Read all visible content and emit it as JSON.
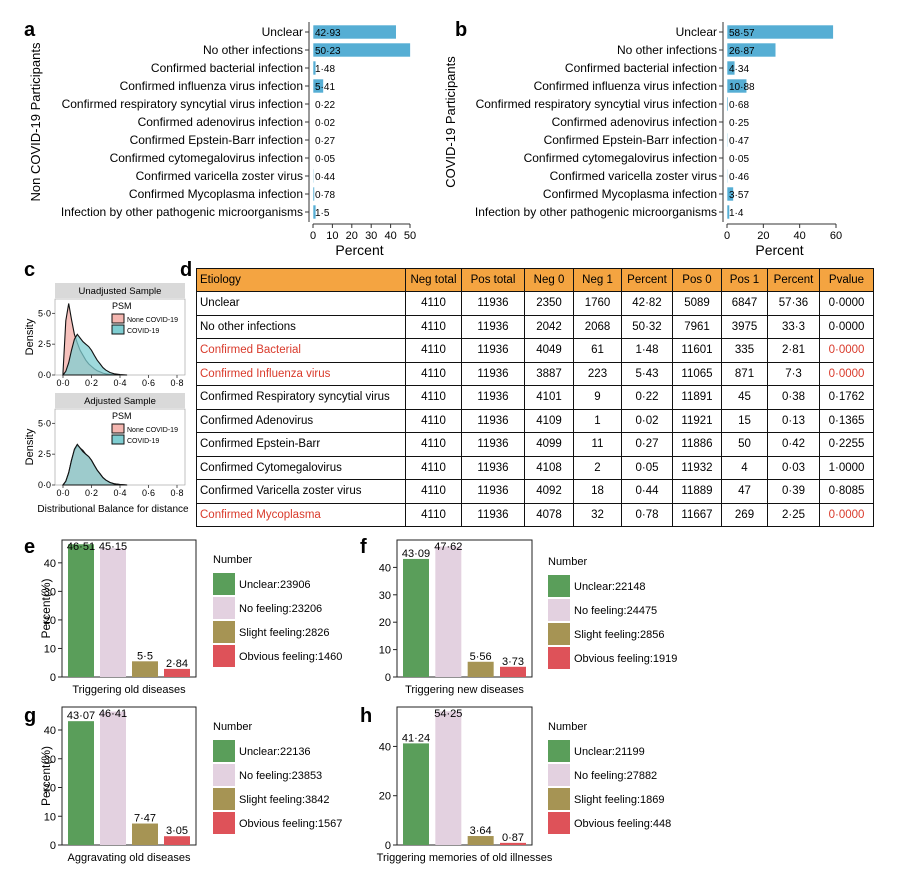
{
  "panel_labels": {
    "a": "a",
    "b": "b",
    "c": "c",
    "d": "d",
    "e": "e",
    "f": "f",
    "g": "g",
    "h": "h"
  },
  "chart_data": [
    {
      "panel": "a",
      "type": "bar",
      "orientation": "horizontal",
      "ylabel": "Non COVID-19 Participants",
      "xlabel": "Percent",
      "xlim": [
        0,
        50
      ],
      "xticks": [
        0,
        10,
        20,
        30,
        40,
        50
      ],
      "color": "#56aed4",
      "categories": [
        "Unclear",
        "No other infections",
        "Confirmed bacterial infection",
        "Confirmed influenza virus infection",
        "Confirmed respiratory syncytial virus infection",
        "Confirmed adenovirus infection",
        "Confirmed Epstein-Barr infection",
        "Confirmed cytomegalovirus infection",
        "Confirmed varicella zoster virus",
        "Confirmed Mycoplasma infection",
        "Infection by other pathogenic microorganisms"
      ],
      "values": [
        42.93,
        50.23,
        1.48,
        5.41,
        0.22,
        0.02,
        0.27,
        0.05,
        0.44,
        0.78,
        1.5
      ],
      "value_labels": [
        "42·93",
        "50·23",
        "1·48",
        "5·41",
        "0·22",
        "0·02",
        "0·27",
        "0·05",
        "0·44",
        "0·78",
        "1·5"
      ]
    },
    {
      "panel": "b",
      "type": "bar",
      "orientation": "horizontal",
      "ylabel": "COVID-19 Participants",
      "xlabel": "Percent",
      "xlim": [
        0,
        60
      ],
      "xticks": [
        0,
        20,
        40,
        60
      ],
      "color": "#56aed4",
      "categories": [
        "Unclear",
        "No other infections",
        "Confirmed bacterial infection",
        "Confirmed influenza virus infection",
        "Confirmed respiratory syncytial virus infection",
        "Confirmed adenovirus infection",
        "Confirmed Epstein-Barr infection",
        "Confirmed cytomegalovirus infection",
        "Confirmed varicella zoster virus",
        "Confirmed Mycoplasma infection",
        "Infection by other pathogenic microorganisms"
      ],
      "values": [
        58.57,
        26.87,
        4.34,
        10.88,
        0.68,
        0.25,
        0.47,
        0.05,
        0.46,
        3.57,
        1.4
      ],
      "value_labels": [
        "58·57",
        "26·87",
        "4·34",
        "10·88",
        "0·68",
        "0·25",
        "0·47",
        "0·05",
        "0·46",
        "3·57",
        "1·4"
      ]
    },
    {
      "panel": "c",
      "type": "area",
      "facets": [
        {
          "title": "Unadjusted Sample",
          "series": [
            {
              "name": "None COVID-19",
              "color": "#f4b6b0",
              "x": [
                0,
                0.02,
                0.04,
                0.06,
                0.08,
                0.1,
                0.12,
                0.14,
                0.16,
                0.18,
                0.2,
                0.22,
                0.24,
                0.26,
                0.28,
                0.3,
                0.33,
                0.36,
                0.4
              ],
              "y": [
                0.2,
                4.4,
                5.8,
                4.5,
                3.3,
                2.6,
                2.0,
                1.6,
                1.2,
                0.9,
                0.7,
                0.5,
                0.35,
                0.25,
                0.15,
                0.1,
                0.05,
                0.02,
                0
              ]
            },
            {
              "name": "COVID-19",
              "color": "#7fcdd1",
              "x": [
                0,
                0.02,
                0.04,
                0.06,
                0.08,
                0.1,
                0.12,
                0.14,
                0.16,
                0.18,
                0.2,
                0.22,
                0.24,
                0.26,
                0.28,
                0.3,
                0.33,
                0.36,
                0.4,
                0.45
              ],
              "y": [
                0,
                0.3,
                1.0,
                2.0,
                2.9,
                3.3,
                3.0,
                2.7,
                2.5,
                2.3,
                2.0,
                1.6,
                1.2,
                0.9,
                0.6,
                0.4,
                0.2,
                0.1,
                0.03,
                0
              ]
            }
          ]
        },
        {
          "title": "Adjusted Sample",
          "series": [
            {
              "name": "None COVID-19",
              "color": "#f4b6b0",
              "x": [
                0,
                0.02,
                0.04,
                0.06,
                0.08,
                0.1,
                0.12,
                0.14,
                0.16,
                0.18,
                0.2,
                0.22,
                0.24,
                0.26,
                0.28,
                0.3,
                0.33,
                0.36,
                0.4,
                0.45
              ],
              "y": [
                0,
                0.3,
                1.0,
                2.0,
                2.8,
                3.2,
                3.0,
                2.8,
                2.5,
                2.3,
                2.0,
                1.6,
                1.2,
                0.9,
                0.6,
                0.4,
                0.2,
                0.1,
                0.03,
                0
              ]
            },
            {
              "name": "COVID-19",
              "color": "#7fcdd1",
              "x": [
                0,
                0.02,
                0.04,
                0.06,
                0.08,
                0.1,
                0.12,
                0.14,
                0.16,
                0.18,
                0.2,
                0.22,
                0.24,
                0.26,
                0.28,
                0.3,
                0.33,
                0.36,
                0.4,
                0.45
              ],
              "y": [
                0,
                0.3,
                1.0,
                2.0,
                2.9,
                3.3,
                3.0,
                2.7,
                2.5,
                2.3,
                2.0,
                1.6,
                1.2,
                0.9,
                0.6,
                0.4,
                0.2,
                0.1,
                0.03,
                0
              ]
            }
          ]
        }
      ],
      "legend_title": "PSM",
      "ylabel": "Density",
      "xlabel": "Distributional Balance for distance",
      "xlim": [
        0,
        0.8
      ],
      "ylim": [
        0,
        6
      ],
      "xtick_labels": [
        "0·0",
        "0·2",
        "0·4",
        "0·6",
        "0·8"
      ],
      "ytick_labels": [
        "0·0",
        "2·5",
        "5·0"
      ],
      "ytick_values": [
        0,
        2.5,
        5.0
      ]
    },
    {
      "panel": "d",
      "type": "table",
      "columns": [
        "Etiology",
        "Neg total",
        "Pos total",
        "Neg 0",
        "Neg 1",
        "Percent",
        "Pos 0",
        "Pos 1",
        "Percent",
        "Pvalue"
      ],
      "rows": [
        {
          "cells": [
            "Unclear",
            "4110",
            "11936",
            "2350",
            "1760",
            "42·82",
            "5089",
            "6847",
            "57·36",
            "0·0000"
          ],
          "highlight": false
        },
        {
          "cells": [
            "No other infections",
            "4110",
            "11936",
            "2042",
            "2068",
            "50·32",
            "7961",
            "3975",
            "33·3",
            "0·0000"
          ],
          "highlight": false
        },
        {
          "cells": [
            "Confirmed Bacterial",
            "4110",
            "11936",
            "4049",
            "61",
            "1·48",
            "11601",
            "335",
            "2·81",
            "0·0000"
          ],
          "highlight": true
        },
        {
          "cells": [
            "Confirmed Influenza virus",
            "4110",
            "11936",
            "3887",
            "223",
            "5·43",
            "11065",
            "871",
            "7·3",
            "0·0000"
          ],
          "highlight": true
        },
        {
          "cells": [
            "Confirmed Respiratory syncytial virus",
            "4110",
            "11936",
            "4101",
            "9",
            "0·22",
            "11891",
            "45",
            "0·38",
            "0·1762"
          ],
          "highlight": false
        },
        {
          "cells": [
            "Confirmed Adenovirus",
            "4110",
            "11936",
            "4109",
            "1",
            "0·02",
            "11921",
            "15",
            "0·13",
            "0·1365"
          ],
          "highlight": false
        },
        {
          "cells": [
            "Confirmed Epstein-Barr",
            "4110",
            "11936",
            "4099",
            "11",
            "0·27",
            "11886",
            "50",
            "0·42",
            "0·2255"
          ],
          "highlight": false
        },
        {
          "cells": [
            "Confirmed Cytomegalovirus",
            "4110",
            "11936",
            "4108",
            "2",
            "0·05",
            "11932",
            "4",
            "0·03",
            "1·0000"
          ],
          "highlight": false
        },
        {
          "cells": [
            "Confirmed Varicella zoster virus",
            "4110",
            "11936",
            "4092",
            "18",
            "0·44",
            "11889",
            "47",
            "0·39",
            "0·8085"
          ],
          "highlight": false
        },
        {
          "cells": [
            "Confirmed Mycoplasma",
            "4110",
            "11936",
            "4078",
            "32",
            "0·78",
            "11667",
            "269",
            "2·25",
            "0·0000"
          ],
          "highlight": true
        }
      ],
      "highlight_color": "#d93a2b"
    },
    {
      "panel": "e",
      "type": "bar",
      "xlabel": "Triggering old diseases",
      "ylabel": "Percent(%)",
      "ylim": [
        0,
        48
      ],
      "yticks": [
        0,
        10,
        20,
        30,
        40
      ],
      "legend_title": "Number",
      "categories": [
        "Unclear",
        "No feeling",
        "Slight feeling",
        "Obvious feeling"
      ],
      "values": [
        46.51,
        45.15,
        5.5,
        2.84
      ],
      "value_labels": [
        "46·51",
        "45·15",
        "5·5",
        "2·84"
      ],
      "legend_labels": [
        "Unclear:23906",
        "No feeling:23206",
        "Slight feeling:2826",
        "Obvious feeling:1460"
      ],
      "colors": [
        "#5a9e5a",
        "#e3d1e0",
        "#a69454",
        "#de5259"
      ]
    },
    {
      "panel": "f",
      "type": "bar",
      "xlabel": "Triggering new diseases",
      "ylabel": "",
      "ylim": [
        0,
        50
      ],
      "yticks": [
        0,
        10,
        20,
        30,
        40
      ],
      "legend_title": "Number",
      "categories": [
        "Unclear",
        "No feeling",
        "Slight feeling",
        "Obvious feeling"
      ],
      "values": [
        43.09,
        47.62,
        5.56,
        3.73
      ],
      "value_labels": [
        "43·09",
        "47·62",
        "5·56",
        "3·73"
      ],
      "legend_labels": [
        "Unclear:22148",
        "No feeling:24475",
        "Slight feeling:2856",
        "Obvious feeling:1919"
      ],
      "colors": [
        "#5a9e5a",
        "#e3d1e0",
        "#a69454",
        "#de5259"
      ]
    },
    {
      "panel": "g",
      "type": "bar",
      "xlabel": "Aggravating old diseases",
      "ylabel": "Percent(%)",
      "ylim": [
        0,
        48
      ],
      "yticks": [
        0,
        10,
        20,
        30,
        40
      ],
      "legend_title": "Number",
      "categories": [
        "Unclear",
        "No feeling",
        "Slight feeling",
        "Obvious feeling"
      ],
      "values": [
        43.07,
        46.41,
        7.47,
        3.05
      ],
      "value_labels": [
        "43·07",
        "46·41",
        "7·47",
        "3·05"
      ],
      "legend_labels": [
        "Unclear:22136",
        "No feeling:23853",
        "Slight feeling:3842",
        "Obvious feeling:1567"
      ],
      "colors": [
        "#5a9e5a",
        "#e3d1e0",
        "#a69454",
        "#de5259"
      ]
    },
    {
      "panel": "h",
      "type": "bar",
      "xlabel": "Triggering memories of old illnesses",
      "ylabel": "",
      "ylim": [
        0,
        56
      ],
      "yticks": [
        0,
        20,
        40
      ],
      "legend_title": "Number",
      "categories": [
        "Unclear",
        "No feeling",
        "Slight feeling",
        "Obvious feeling"
      ],
      "values": [
        41.24,
        54.25,
        3.64,
        0.87
      ],
      "value_labels": [
        "41·24",
        "54·25",
        "3·64",
        "0·87"
      ],
      "legend_labels": [
        "Unclear:21199",
        "No feeling:27882",
        "Slight feeling:1869",
        "Obvious feeling:448"
      ],
      "colors": [
        "#5a9e5a",
        "#e3d1e0",
        "#a69454",
        "#de5259"
      ]
    }
  ]
}
